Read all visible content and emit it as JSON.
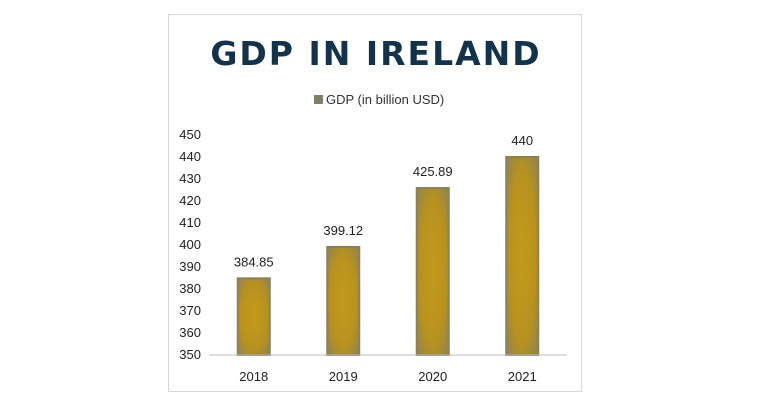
{
  "chart_data": {
    "type": "bar",
    "title": "GDP IN IRELAND",
    "xlabel": "",
    "ylabel": "",
    "categories": [
      "2018",
      "2019",
      "2020",
      "2021"
    ],
    "series": [
      {
        "name": "GDP (in billion USD)",
        "values": [
          384.85,
          399.12,
          425.89,
          440
        ]
      }
    ],
    "data_labels": [
      "384.85",
      "399.12",
      "425.89",
      "440"
    ],
    "ylim": [
      350,
      450
    ],
    "yticks": [
      350,
      360,
      370,
      380,
      390,
      400,
      410,
      420,
      430,
      440,
      450
    ],
    "grid": false,
    "legend_position": "top",
    "colors": {
      "bar_fill": "#b8921e",
      "bar_edge": "#8c8057",
      "title": "#14324a",
      "legend_swatch": "#7f7f6a",
      "axis": "#bfbfbf"
    }
  }
}
